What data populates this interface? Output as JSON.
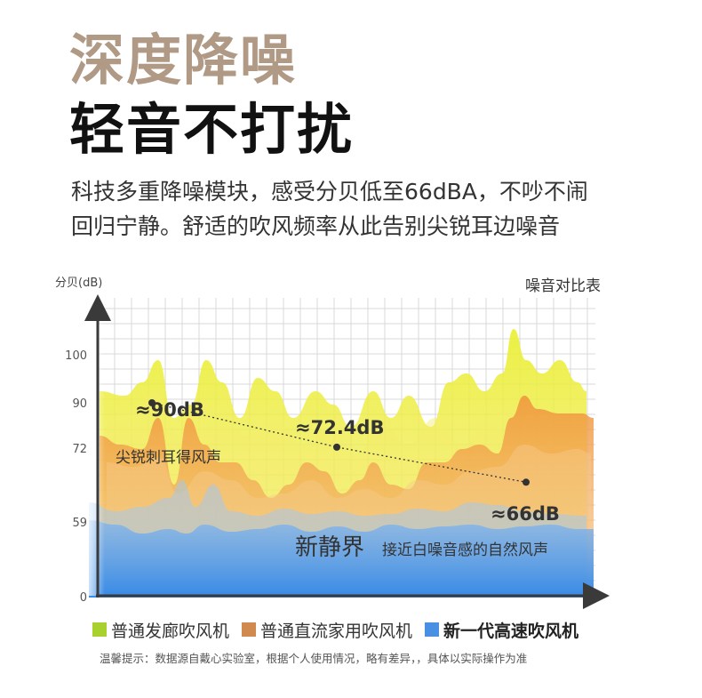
{
  "headline": {
    "line1": "深度降噪",
    "line2": "轻音不打扰"
  },
  "description": {
    "line1": "科技多重降噪模块，感受分贝低至66dBA，不吵不闹",
    "line2": "回归宁静。舒适的吹风频率从此告别尖锐耳边噪音"
  },
  "chart_data": {
    "type": "area",
    "title": "噪音对比表",
    "ylabel": "分贝(dB)",
    "y_ticks": [
      0,
      59,
      72,
      90,
      100
    ],
    "ylim": [
      0,
      115
    ],
    "grid": true,
    "legend_placement": "bottom",
    "colors": {
      "salon": "#a8d12d",
      "household": "#d08a4f",
      "new_gen": "#4a90e2",
      "salon_area": "#f2ea3e",
      "household_area": "#f2a248",
      "new_gen_area": "#5a9be8"
    },
    "series": [
      {
        "name": "普通发廊吹风机",
        "color": "#a8d12d",
        "point_label": "≈90dB",
        "point_value": 90,
        "note": "尖锐刺耳得风声"
      },
      {
        "name": "普通直流家用吹风机",
        "color": "#d08a4f",
        "point_label": "≈72.4dB",
        "point_value": 72.4
      },
      {
        "name": "新一代高速吹风机",
        "color": "#4a90e2",
        "point_label": "≈66dB",
        "point_value": 66,
        "highlight_label": "新静界",
        "highlight_desc": "接近白噪音感的自然风声"
      }
    ]
  },
  "footnote": "温馨提示：数据源自戴心实验室，根据个人使用情况，略有差异，，具体以实际操作为准"
}
